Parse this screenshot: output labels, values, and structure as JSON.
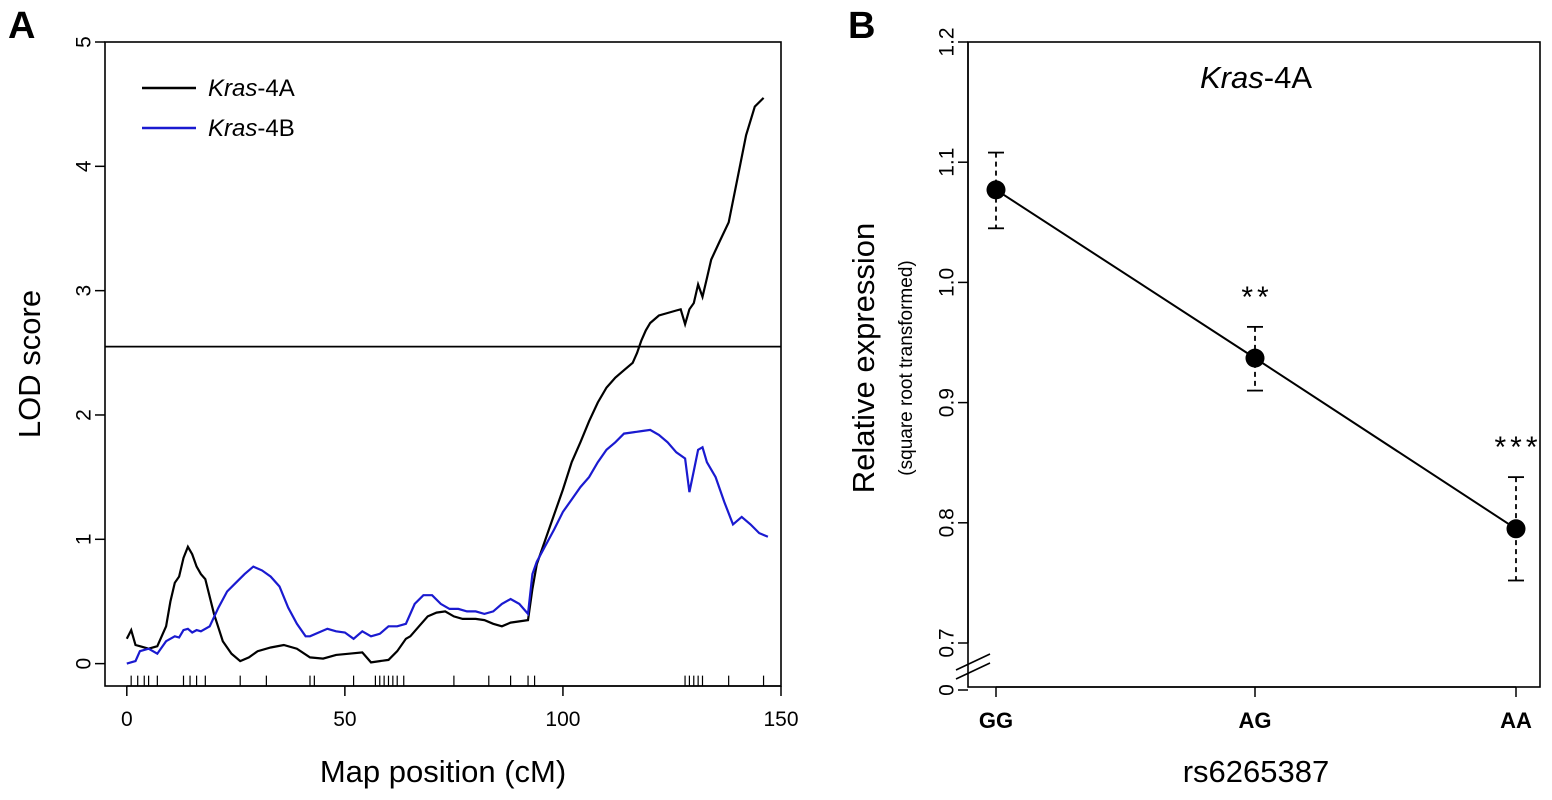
{
  "colors": {
    "kras4a": "#000000",
    "kras4b": "#1a1ad0",
    "threshold": "#000000"
  },
  "chart_data": [
    {
      "panel": "A",
      "type": "line",
      "xlabel": "Map position (cM)",
      "ylabel": "LOD score",
      "xlim": [
        -5,
        150
      ],
      "ylim": [
        -0.18,
        5
      ],
      "xticks": [
        "0",
        "50",
        "100",
        "150"
      ],
      "yticks": [
        "0",
        "1",
        "2",
        "3",
        "4",
        "5"
      ],
      "threshold": 2.55,
      "legend_position": "top-left",
      "series": [
        {
          "name_italic": "Kras",
          "name_suffix": "-4A",
          "color": "#000000",
          "x": [
            0,
            1,
            2,
            3,
            5,
            7,
            9,
            10,
            11,
            12,
            13,
            14,
            15,
            16,
            17,
            18,
            20,
            22,
            24,
            26,
            28,
            30,
            33,
            36,
            39,
            42,
            45,
            48,
            51,
            54,
            56,
            58,
            60,
            62,
            64,
            65,
            67,
            69,
            71,
            73,
            75,
            77,
            80,
            82,
            84,
            86,
            88,
            90,
            92,
            93,
            94,
            96,
            98,
            100,
            102,
            104,
            106,
            108,
            110,
            112,
            114,
            116,
            117,
            118,
            119,
            120,
            122,
            124,
            126,
            127,
            128,
            129,
            130,
            131,
            132,
            133,
            134,
            136,
            138,
            140,
            142,
            144,
            146
          ],
          "y": [
            0.2,
            0.27,
            0.15,
            0.14,
            0.12,
            0.14,
            0.3,
            0.5,
            0.65,
            0.7,
            0.85,
            0.94,
            0.88,
            0.78,
            0.72,
            0.68,
            0.4,
            0.18,
            0.08,
            0.02,
            0.05,
            0.1,
            0.13,
            0.15,
            0.12,
            0.05,
            0.04,
            0.07,
            0.08,
            0.09,
            0.01,
            0.02,
            0.03,
            0.1,
            0.2,
            0.22,
            0.3,
            0.38,
            0.41,
            0.42,
            0.38,
            0.36,
            0.36,
            0.35,
            0.32,
            0.3,
            0.33,
            0.34,
            0.35,
            0.6,
            0.8,
            1.0,
            1.2,
            1.4,
            1.62,
            1.78,
            1.95,
            2.1,
            2.22,
            2.3,
            2.36,
            2.42,
            2.5,
            2.6,
            2.68,
            2.74,
            2.8,
            2.82,
            2.84,
            2.85,
            2.73,
            2.85,
            2.9,
            3.05,
            2.95,
            3.1,
            3.25,
            3.4,
            3.55,
            3.9,
            4.25,
            4.48,
            4.55
          ]
        },
        {
          "name_italic": "Kras",
          "name_suffix": "-4B",
          "color": "#1a1ad0",
          "x": [
            0,
            2,
            3,
            5,
            7,
            9,
            11,
            12,
            13,
            14,
            15,
            16,
            17,
            19,
            21,
            23,
            25,
            27,
            29,
            31,
            33,
            35,
            37,
            39,
            41,
            42,
            44,
            46,
            48,
            50,
            52,
            54,
            56,
            58,
            60,
            62,
            64,
            66,
            68,
            70,
            72,
            74,
            76,
            78,
            80,
            82,
            84,
            86,
            88,
            90,
            92,
            93,
            94,
            96,
            98,
            100,
            102,
            104,
            106,
            108,
            110,
            112,
            114,
            116,
            118,
            120,
            122,
            124,
            126,
            128,
            129,
            130,
            131,
            132,
            133,
            135,
            137,
            139,
            141,
            143,
            145,
            147
          ],
          "y": [
            0.0,
            0.02,
            0.1,
            0.12,
            0.08,
            0.18,
            0.22,
            0.21,
            0.27,
            0.28,
            0.25,
            0.27,
            0.26,
            0.3,
            0.45,
            0.58,
            0.65,
            0.72,
            0.78,
            0.75,
            0.7,
            0.62,
            0.45,
            0.32,
            0.22,
            0.22,
            0.25,
            0.28,
            0.26,
            0.25,
            0.2,
            0.26,
            0.22,
            0.24,
            0.3,
            0.3,
            0.32,
            0.48,
            0.55,
            0.55,
            0.48,
            0.44,
            0.44,
            0.42,
            0.42,
            0.4,
            0.42,
            0.48,
            0.52,
            0.48,
            0.4,
            0.72,
            0.82,
            0.95,
            1.08,
            1.22,
            1.32,
            1.42,
            1.5,
            1.62,
            1.72,
            1.78,
            1.85,
            1.86,
            1.87,
            1.88,
            1.84,
            1.78,
            1.7,
            1.65,
            1.38,
            1.55,
            1.72,
            1.74,
            1.62,
            1.5,
            1.3,
            1.12,
            1.18,
            1.12,
            1.05,
            1.02
          ]
        }
      ],
      "markers": [
        1,
        2.5,
        4,
        5,
        7,
        13,
        14.5,
        16,
        18,
        26,
        32,
        42,
        43,
        52,
        57,
        58,
        59,
        60,
        61,
        62,
        63.5,
        75,
        83,
        88,
        92,
        93.5,
        128,
        129,
        130,
        131,
        132,
        138,
        146
      ]
    },
    {
      "panel": "B",
      "type": "line",
      "title_italic": "Kras",
      "title_suffix": "-4A",
      "xlabel": "rs6265387",
      "ylabel": "Relative expression",
      "ylabel_sub": "(square root transformed)",
      "categories": [
        "GG",
        "AG",
        "AA"
      ],
      "values": [
        1.077,
        0.937,
        0.795
      ],
      "error_upper": [
        1.108,
        0.963,
        0.838
      ],
      "error_lower": [
        1.045,
        0.91,
        0.752
      ],
      "significance": [
        "",
        "**",
        "***"
      ],
      "yticks": [
        "0",
        "0.7",
        "0.8",
        "0.9",
        "1.0",
        "1.1",
        "1.2"
      ],
      "ylim": [
        0.7,
        1.2
      ],
      "axis_break": true
    }
  ]
}
